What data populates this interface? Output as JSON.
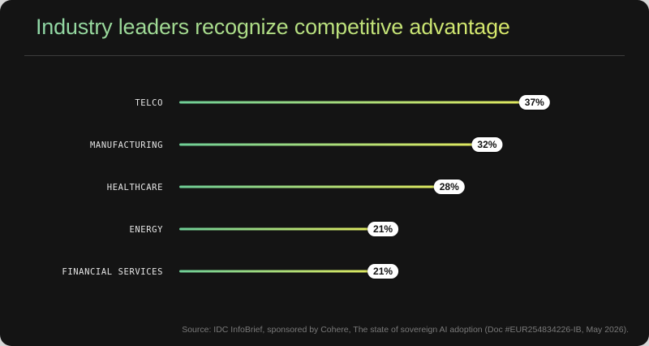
{
  "title": "Industry leaders recognize competitive advantage",
  "source": "Source: IDC InfoBrief, sponsored by Cohere, The state of sovereign AI adoption (Doc #EUR254834226-IB, May 2026).",
  "colors": {
    "background": "#141414",
    "bar_start": "#6fcf97",
    "bar_end": "#e3ea5e",
    "pill": "#ffffff",
    "label": "#e6e6e6"
  },
  "chart_data": {
    "type": "bar",
    "orientation": "horizontal",
    "categories": [
      "TELCO",
      "MANUFACTURING",
      "HEALTHCARE",
      "ENERGY",
      "FINANCIAL SERVICES"
    ],
    "values": [
      37,
      32,
      28,
      21,
      21
    ],
    "value_labels": [
      "37%",
      "32%",
      "28%",
      "21%",
      "21%"
    ],
    "unit": "%",
    "grid": false,
    "legend": "none"
  }
}
